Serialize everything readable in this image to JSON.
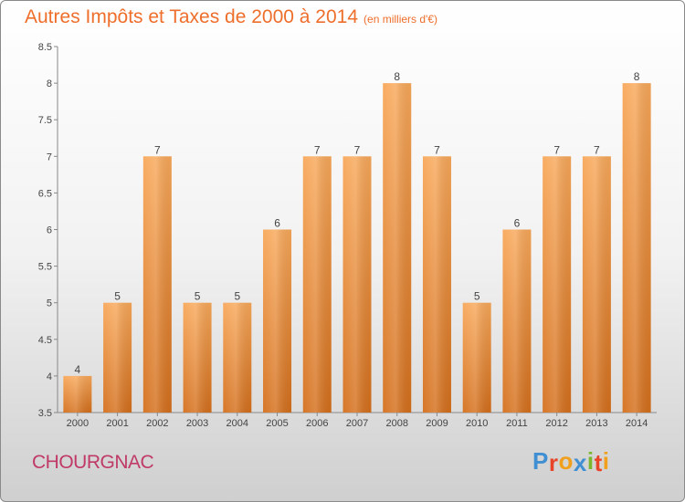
{
  "chart_data": {
    "type": "bar",
    "title": "Autres Impôts et Taxes de 2000 à 2014",
    "subtitle": "(en milliers d'€)",
    "categories": [
      "2000",
      "2001",
      "2002",
      "2003",
      "2004",
      "2005",
      "2006",
      "2007",
      "2008",
      "2009",
      "2010",
      "2011",
      "2012",
      "2013",
      "2014"
    ],
    "values": [
      4,
      5,
      7,
      5,
      5,
      6,
      7,
      7,
      8,
      7,
      5,
      6,
      7,
      7,
      8
    ],
    "value_labels": [
      "4",
      "5",
      "7",
      "5",
      "5",
      "6",
      "7",
      "7",
      "8",
      "7",
      "5",
      "6",
      "7",
      "7",
      "8"
    ],
    "ylim": [
      3.5,
      8.5
    ],
    "yticks": [
      3.5,
      4,
      4.5,
      5,
      5.5,
      6,
      6.5,
      7,
      7.5,
      8,
      8.5
    ],
    "ytick_labels": [
      "3.5",
      "4",
      "4.5",
      "5",
      "5.5",
      "6",
      "6.5",
      "7",
      "7.5",
      "8",
      "8.5"
    ],
    "grid": false,
    "bar_color": "#f28e38",
    "title_color": "#ee6e2b"
  },
  "footer": {
    "commune": "CHOURGNAC",
    "commune_color": "#c03a66"
  },
  "logo": {
    "text": "Proxiti",
    "letter_colors": [
      "#3f8fd2",
      "#e8442a",
      "#f0a01c",
      "#3f8fd2",
      "#7ab72e",
      "#e8442a",
      "#f0a01c"
    ]
  }
}
